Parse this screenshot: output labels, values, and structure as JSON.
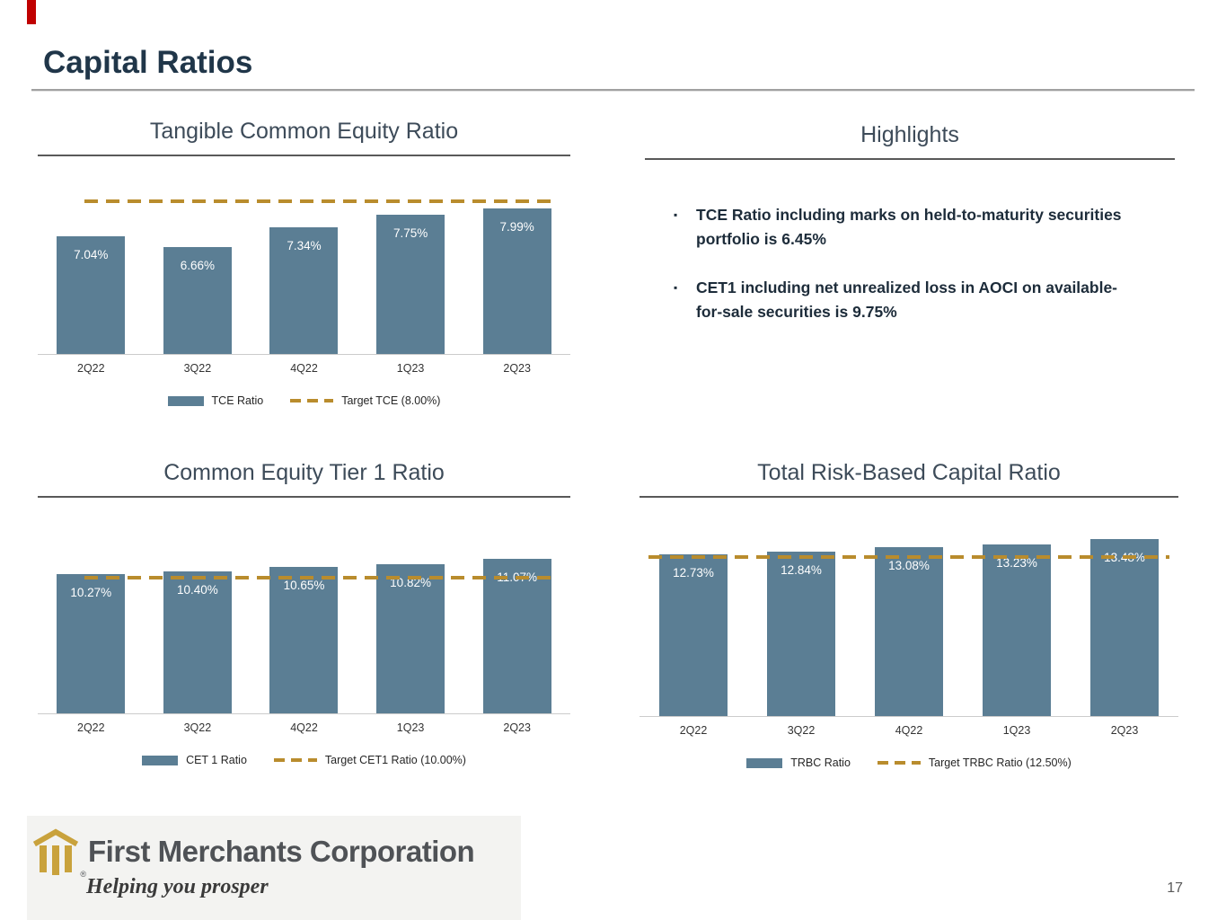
{
  "slide": {
    "title": "Capital Ratios",
    "page_number": "17"
  },
  "highlights": {
    "title": "Highlights",
    "bullet_marker": "▪",
    "bullets": [
      "TCE Ratio including marks on held-to-maturity securities portfolio is 6.45%",
      "CET1 including net unrealized loss in AOCI on available-for-sale securities is 9.75%"
    ]
  },
  "logo": {
    "company": "First Merchants Corporation",
    "registered": "®",
    "tagline": "Helping you prosper"
  },
  "colors": {
    "bar": "#5B7E94",
    "target_dash": "#B98C2D",
    "accent_red": "#C00000",
    "title_text": "#203649",
    "logo_gold": "#C9A23C"
  },
  "chart_data": [
    {
      "id": "tce",
      "type": "bar",
      "title": "Tangible Common Equity Ratio",
      "categories": [
        "2Q22",
        "3Q22",
        "4Q22",
        "1Q23",
        "2Q23"
      ],
      "values": [
        7.04,
        6.66,
        7.34,
        7.75,
        7.99
      ],
      "labels": [
        "7.04%",
        "6.66%",
        "7.34%",
        "7.75%",
        "7.99%"
      ],
      "target_value": 8.0,
      "ylim": [
        3.0,
        9.3
      ],
      "legend_series": "TCE Ratio",
      "legend_target": "Target TCE (8.00%)"
    },
    {
      "id": "cet1",
      "type": "bar",
      "title": "Common Equity Tier 1 Ratio",
      "categories": [
        "2Q22",
        "3Q22",
        "4Q22",
        "1Q23",
        "2Q23"
      ],
      "values": [
        10.27,
        10.4,
        10.65,
        10.82,
        11.07
      ],
      "labels": [
        "10.27%",
        "10.40%",
        "10.65%",
        "10.82%",
        "11.07%"
      ],
      "target_value": 10.0,
      "ylim": [
        3.0,
        13.8
      ],
      "legend_series": "CET 1 Ratio",
      "legend_target": "Target CET1 Ratio (10.00%)"
    },
    {
      "id": "trbc",
      "type": "bar",
      "title": "Total Risk-Based Capital Ratio",
      "categories": [
        "2Q22",
        "3Q22",
        "4Q22",
        "1Q23",
        "2Q23"
      ],
      "values": [
        12.73,
        12.84,
        13.08,
        13.23,
        13.48
      ],
      "labels": [
        "12.73%",
        "12.84%",
        "13.08%",
        "13.23%",
        "13.48%"
      ],
      "target_value": 12.5,
      "ylim": [
        4.5,
        15.0
      ],
      "legend_series": "TRBC Ratio",
      "legend_target": "Target TRBC Ratio (12.50%)"
    }
  ]
}
